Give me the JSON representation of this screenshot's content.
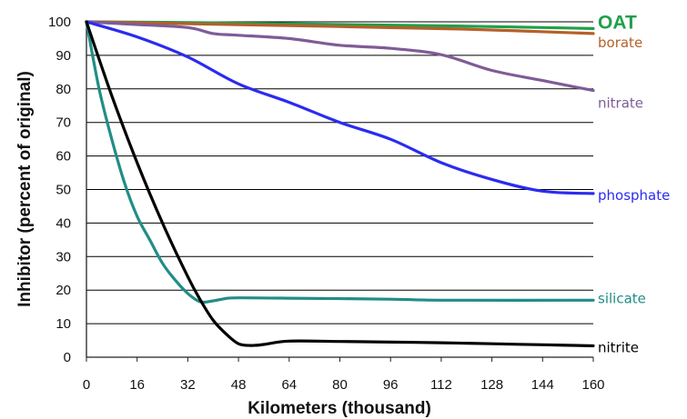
{
  "chart_data": {
    "type": "line",
    "title": "",
    "xlabel": "Kilometers (thousand)",
    "ylabel": "Inhibitor (percent of original)",
    "xlim": [
      0,
      160
    ],
    "ylim": [
      0,
      100
    ],
    "xticks": [
      0,
      16,
      32,
      48,
      64,
      80,
      96,
      112,
      128,
      144,
      160
    ],
    "yticks": [
      0,
      10,
      20,
      30,
      40,
      50,
      60,
      70,
      80,
      90,
      100
    ],
    "grid": "horizontal",
    "legend": "inline labels at right end of each line",
    "series": [
      {
        "name": "OAT",
        "color": "#1fa04a",
        "label_emphasis": "bold-large",
        "points": [
          [
            0,
            100
          ],
          [
            40,
            99.7
          ],
          [
            80,
            99.2
          ],
          [
            120,
            98.7
          ],
          [
            160,
            98
          ]
        ]
      },
      {
        "name": "borate",
        "color": "#b5602a",
        "points": [
          [
            0,
            100
          ],
          [
            40,
            99.3
          ],
          [
            80,
            98.6
          ],
          [
            120,
            97.8
          ],
          [
            160,
            96.5
          ]
        ]
      },
      {
        "name": "nitrate",
        "color": "#7e5c97",
        "points": [
          [
            0,
            100
          ],
          [
            16,
            99.2
          ],
          [
            32,
            98.3
          ],
          [
            40,
            96.5
          ],
          [
            48,
            96
          ],
          [
            64,
            95
          ],
          [
            80,
            93
          ],
          [
            96,
            92.1
          ],
          [
            112,
            90.2
          ],
          [
            128,
            85.5
          ],
          [
            144,
            82.5
          ],
          [
            160,
            79.5
          ]
        ]
      },
      {
        "name": "phosphate",
        "color": "#2b2bf0",
        "points": [
          [
            0,
            100
          ],
          [
            16,
            95.5
          ],
          [
            32,
            89.5
          ],
          [
            48,
            81.5
          ],
          [
            64,
            76
          ],
          [
            80,
            70
          ],
          [
            96,
            65
          ],
          [
            112,
            58
          ],
          [
            128,
            53
          ],
          [
            144,
            49.5
          ],
          [
            160,
            48.8
          ]
        ]
      },
      {
        "name": "silicate",
        "color": "#218d87",
        "points": [
          [
            0,
            100
          ],
          [
            4,
            80
          ],
          [
            8,
            65
          ],
          [
            12,
            52
          ],
          [
            16,
            42
          ],
          [
            20,
            35
          ],
          [
            24,
            28
          ],
          [
            28,
            23
          ],
          [
            32,
            19
          ],
          [
            36,
            16.5
          ],
          [
            40,
            16.8
          ],
          [
            44,
            17.5
          ],
          [
            48,
            17.7
          ],
          [
            64,
            17.6
          ],
          [
            96,
            17.3
          ],
          [
            112,
            17
          ],
          [
            160,
            17
          ]
        ]
      },
      {
        "name": "nitrite",
        "color": "#000000",
        "points": [
          [
            0,
            100
          ],
          [
            8,
            78
          ],
          [
            16,
            58
          ],
          [
            24,
            40
          ],
          [
            32,
            24
          ],
          [
            36,
            17
          ],
          [
            40,
            11
          ],
          [
            44,
            7
          ],
          [
            48,
            4
          ],
          [
            52,
            3.5
          ],
          [
            56,
            3.8
          ],
          [
            64,
            4.8
          ],
          [
            80,
            4.7
          ],
          [
            96,
            4.5
          ],
          [
            112,
            4.3
          ],
          [
            128,
            4
          ],
          [
            144,
            3.7
          ],
          [
            160,
            3.4
          ]
        ]
      }
    ]
  }
}
